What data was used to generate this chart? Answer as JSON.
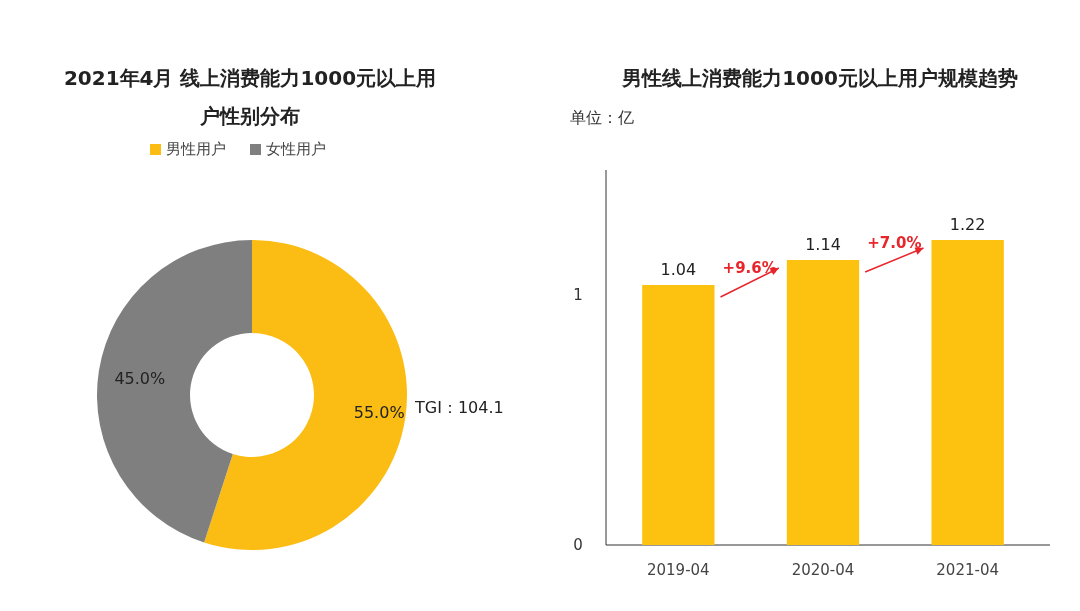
{
  "chart_data": [
    {
      "type": "donut",
      "title": "2021年4月 线上消费能力1000元以上用户性别分布",
      "categories": [
        "男性用户",
        "女性用户"
      ],
      "values": [
        55,
        45
      ],
      "colors": [
        "#fbbd13",
        "#7f7f7f"
      ],
      "value_labels": [
        "55.0%",
        "45.0%"
      ],
      "legend": "top",
      "annotations": [
        "TGI：104.1"
      ]
    },
    {
      "type": "bar",
      "title": "男性线上消费能力1000元以上用户规模趋势",
      "categories": [
        "2019-04",
        "2020-04",
        "2021-04"
      ],
      "values": [
        1.04,
        1.14,
        1.22
      ],
      "color": "#fdc20f",
      "ylim": [
        0,
        1.5
      ],
      "yticks": [
        0,
        1
      ],
      "data_labels": true,
      "annotations": [
        "单位：亿",
        "+9.6%",
        "+7.0%"
      ]
    }
  ]
}
